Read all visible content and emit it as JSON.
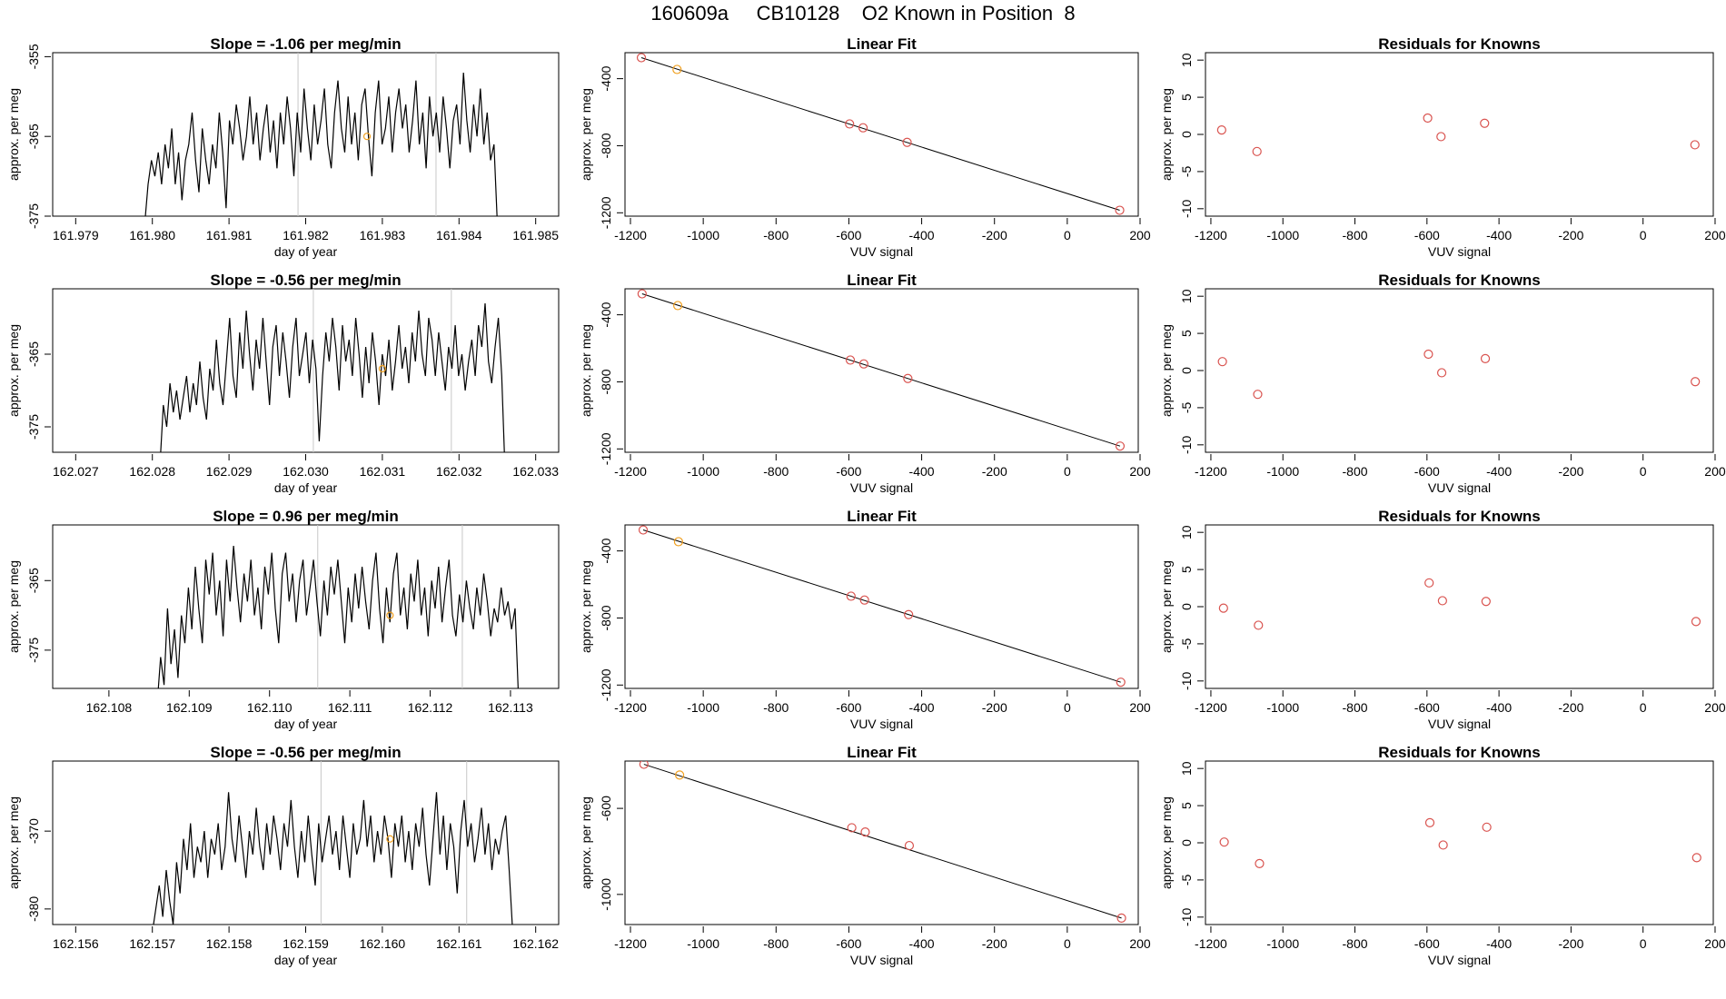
{
  "page": {
    "title": "160609a     CB10128    O2 Known in Position  8"
  },
  "colors": {
    "line": "#000000",
    "point": "#d9534f",
    "highlight": "#f0a020",
    "vline": "#c8c8c8"
  },
  "chart_data": [
    {
      "type": "line",
      "title": "Slope =  -1.06  per meg/min",
      "xlabel": "day of year",
      "ylabel": "approx. per meg",
      "xlim": [
        161.9787,
        161.9853
      ],
      "ylim": [
        -375,
        -354.5
      ],
      "xticks": [
        "161.979",
        "161.980",
        "161.981",
        "161.982",
        "161.983",
        "161.984",
        "161.985"
      ],
      "yticks": [
        "-355",
        "-365",
        "-375"
      ],
      "vlines": [
        161.9819,
        161.9837
      ],
      "highlight": [
        161.9828,
        -365
      ],
      "series": [
        {
          "x0": 161.9799,
          "x1": 161.9845,
          "seed": 11,
          "values": [
            -376,
            -371,
            -368,
            -370,
            -367,
            -371,
            -366,
            -369,
            -364,
            -371,
            -367,
            -373,
            -368,
            -366,
            -362,
            -368,
            -372,
            -364,
            -368,
            -371,
            -366,
            -369,
            -362,
            -367,
            -374,
            -363,
            -366,
            -361,
            -364,
            -368,
            -365,
            -360,
            -366,
            -362,
            -368,
            -364,
            -361,
            -367,
            -363,
            -369,
            -362,
            -366,
            -360,
            -364,
            -370,
            -362,
            -367,
            -359,
            -364,
            -368,
            -361,
            -366,
            -363,
            -359,
            -366,
            -369,
            -362,
            -358,
            -364,
            -367,
            -360,
            -366,
            -362,
            -368,
            -361,
            -359,
            -365,
            -370,
            -362,
            -358,
            -366,
            -364,
            -360,
            -367,
            -362,
            -359,
            -364,
            -361,
            -367,
            -363,
            -358,
            -366,
            -362,
            -369,
            -360,
            -365,
            -362,
            -367,
            -360,
            -364,
            -369,
            -363,
            -361,
            -366,
            -357,
            -363,
            -367,
            -361,
            -365,
            -359,
            -366,
            -362,
            -368,
            -366,
            -376
          ]
        }
      ]
    },
    {
      "type": "scatter",
      "title": "Linear Fit",
      "xlabel": "VUV signal",
      "ylabel": "approx. per meg",
      "xlim": [
        -1215,
        195
      ],
      "ylim": [
        -1220,
        -245
      ],
      "xticks": [
        "-1200",
        "-1000",
        "-800",
        "-600",
        "-400",
        "-200",
        "0",
        "200"
      ],
      "yticks": [
        "-400",
        "-800",
        "-1200"
      ],
      "points": [
        [
          -1170,
          -275
        ],
        [
          -1072,
          -345
        ],
        [
          -598,
          -670
        ],
        [
          -561,
          -693
        ],
        [
          -440,
          -780
        ],
        [
          144,
          -1185
        ]
      ],
      "highlight_index": 1,
      "fit": [
        [
          -1170,
          -275
        ],
        [
          144,
          -1185
        ]
      ]
    },
    {
      "type": "scatter",
      "title": "Residuals for Knowns",
      "xlabel": "VUV signal",
      "ylabel": "approx. per meg",
      "xlim": [
        -1215,
        195
      ],
      "ylim": [
        -11,
        11
      ],
      "xticks": [
        "-1200",
        "-1000",
        "-800",
        "-600",
        "-400",
        "-200",
        "0",
        "200"
      ],
      "yticks": [
        "10",
        "5",
        "0",
        "-5",
        "-10"
      ],
      "points": [
        [
          -1170,
          0.6
        ],
        [
          -1072,
          -2.3
        ],
        [
          -598,
          2.2
        ],
        [
          -561,
          -0.3
        ],
        [
          -440,
          1.5
        ],
        [
          144,
          -1.4
        ]
      ]
    },
    {
      "type": "line",
      "title": "Slope =  -0.56  per meg/min",
      "xlabel": "day of year",
      "ylabel": "approx. per meg",
      "xlim": [
        162.0267,
        162.0333
      ],
      "ylim": [
        -378.5,
        -356
      ],
      "xticks": [
        "162.027",
        "162.028",
        "162.029",
        "162.030",
        "162.031",
        "162.032",
        "162.033"
      ],
      "yticks": [
        "-365",
        "-375"
      ],
      "vlines": [
        162.0301,
        162.0319
      ],
      "highlight": [
        162.031,
        -367
      ],
      "series": [
        {
          "x0": 162.0281,
          "x1": 162.0326,
          "seed": 23,
          "values": [
            -380,
            -372,
            -375,
            -369,
            -373,
            -370,
            -374,
            -371,
            -368,
            -373,
            -369,
            -372,
            -366,
            -371,
            -374,
            -367,
            -370,
            -363,
            -369,
            -372,
            -366,
            -360,
            -368,
            -371,
            -362,
            -367,
            -359,
            -365,
            -370,
            -363,
            -367,
            -360,
            -366,
            -372,
            -364,
            -361,
            -368,
            -362,
            -366,
            -371,
            -364,
            -360,
            -368,
            -365,
            -362,
            -369,
            -363,
            -367,
            -377,
            -368,
            -362,
            -366,
            -360,
            -364,
            -370,
            -361,
            -366,
            -363,
            -368,
            -360,
            -365,
            -371,
            -364,
            -369,
            -362,
            -366,
            -372,
            -365,
            -368,
            -363,
            -370,
            -366,
            -361,
            -367,
            -364,
            -369,
            -362,
            -366,
            -359,
            -365,
            -368,
            -360,
            -363,
            -368,
            -362,
            -366,
            -370,
            -364,
            -367,
            -361,
            -368,
            -365,
            -370,
            -366,
            -363,
            -368,
            -361,
            -364,
            -358,
            -366,
            -369,
            -364,
            -360,
            -368,
            -381
          ]
        }
      ]
    },
    {
      "type": "scatter",
      "title": "Linear Fit",
      "xlabel": "VUV signal",
      "ylabel": "approx. per meg",
      "xlim": [
        -1215,
        195
      ],
      "ylim": [
        -1220,
        -245
      ],
      "xticks": [
        "-1200",
        "-1000",
        "-800",
        "-600",
        "-400",
        "-200",
        "0",
        "200"
      ],
      "yticks": [
        "-400",
        "-800",
        "-1200"
      ],
      "points": [
        [
          -1168,
          -275
        ],
        [
          -1070,
          -345
        ],
        [
          -596,
          -670
        ],
        [
          -559,
          -693
        ],
        [
          -438,
          -780
        ],
        [
          145,
          -1183
        ]
      ],
      "highlight_index": 1,
      "fit": [
        [
          -1168,
          -275
        ],
        [
          145,
          -1183
        ]
      ]
    },
    {
      "type": "scatter",
      "title": "Residuals for Knowns",
      "xlabel": "VUV signal",
      "ylabel": "approx. per meg",
      "xlim": [
        -1215,
        195
      ],
      "ylim": [
        -11,
        11
      ],
      "xticks": [
        "-1200",
        "-1000",
        "-800",
        "-600",
        "-400",
        "-200",
        "0",
        "200"
      ],
      "yticks": [
        "10",
        "5",
        "0",
        "-5",
        "-10"
      ],
      "points": [
        [
          -1168,
          1.2
        ],
        [
          -1070,
          -3.2
        ],
        [
          -596,
          2.2
        ],
        [
          -559,
          -0.3
        ],
        [
          -438,
          1.6
        ],
        [
          145,
          -1.5
        ]
      ]
    },
    {
      "type": "line",
      "title": "Slope =  0.96  per meg/min",
      "xlabel": "day of year",
      "ylabel": "approx. per meg",
      "xlim": [
        162.1073,
        162.1136
      ],
      "ylim": [
        -380.5,
        -357
      ],
      "xticks": [
        "162.108",
        "162.109",
        "162.110",
        "162.111",
        "162.112",
        "162.113"
      ],
      "yticks": [
        "-365",
        "-375"
      ],
      "vlines": [
        162.1106,
        162.1124
      ],
      "highlight": [
        162.1115,
        -370
      ],
      "series": [
        {
          "x0": 162.1086,
          "x1": 162.1131,
          "seed": 37,
          "values": [
            -383,
            -376,
            -380,
            -369,
            -377,
            -372,
            -379,
            -370,
            -374,
            -366,
            -372,
            -363,
            -369,
            -374,
            -362,
            -367,
            -361,
            -370,
            -365,
            -373,
            -362,
            -368,
            -360,
            -366,
            -371,
            -364,
            -368,
            -362,
            -370,
            -366,
            -372,
            -363,
            -367,
            -361,
            -369,
            -374,
            -364,
            -361,
            -368,
            -364,
            -371,
            -365,
            -362,
            -370,
            -366,
            -362,
            -368,
            -373,
            -365,
            -370,
            -363,
            -367,
            -362,
            -368,
            -374,
            -366,
            -371,
            -364,
            -369,
            -363,
            -368,
            -372,
            -365,
            -361,
            -369,
            -374,
            -366,
            -371,
            -364,
            -361,
            -370,
            -366,
            -372,
            -364,
            -368,
            -362,
            -370,
            -366,
            -373,
            -365,
            -369,
            -363,
            -371,
            -366,
            -362,
            -370,
            -373,
            -367,
            -371,
            -365,
            -369,
            -372,
            -366,
            -370,
            -364,
            -368,
            -373,
            -369,
            -371,
            -366,
            -370,
            -368,
            -372,
            -369,
            -382
          ]
        }
      ]
    },
    {
      "type": "scatter",
      "title": "Linear Fit",
      "xlabel": "VUV signal",
      "ylabel": "approx. per meg",
      "xlim": [
        -1215,
        195
      ],
      "ylim": [
        -1220,
        -245
      ],
      "xticks": [
        "-1200",
        "-1000",
        "-800",
        "-600",
        "-400",
        "-200",
        "0",
        "200"
      ],
      "yticks": [
        "-400",
        "-800",
        "-1200"
      ],
      "points": [
        [
          -1165,
          -275
        ],
        [
          -1068,
          -345
        ],
        [
          -594,
          -670
        ],
        [
          -557,
          -693
        ],
        [
          -436,
          -780
        ],
        [
          147,
          -1183
        ]
      ],
      "highlight_index": 1,
      "fit": [
        [
          -1165,
          -275
        ],
        [
          147,
          -1183
        ]
      ]
    },
    {
      "type": "scatter",
      "title": "Residuals for Knowns",
      "xlabel": "VUV signal",
      "ylabel": "approx. per meg",
      "xlim": [
        -1215,
        195
      ],
      "ylim": [
        -11,
        11
      ],
      "xticks": [
        "-1200",
        "-1000",
        "-800",
        "-600",
        "-400",
        "-200",
        "0",
        "200"
      ],
      "yticks": [
        "10",
        "5",
        "0",
        "-5",
        "-10"
      ],
      "points": [
        [
          -1165,
          -0.2
        ],
        [
          -1068,
          -2.5
        ],
        [
          -594,
          3.2
        ],
        [
          -557,
          0.8
        ],
        [
          -436,
          0.7
        ],
        [
          147,
          -2.0
        ]
      ]
    },
    {
      "type": "line",
      "title": "Slope =  -0.56  per meg/min",
      "xlabel": "day of year",
      "ylabel": "approx. per meg",
      "xlim": [
        162.1557,
        162.1623
      ],
      "ylim": [
        -382,
        -361
      ],
      "xticks": [
        "162.156",
        "162.157",
        "162.158",
        "162.159",
        "162.160",
        "162.161",
        "162.162"
      ],
      "yticks": [
        "-370",
        "-380"
      ],
      "vlines": [
        162.1592,
        162.1611
      ],
      "highlight": [
        162.1601,
        -371
      ],
      "series": [
        {
          "x0": 162.157,
          "x1": 162.1617,
          "seed": 53,
          "values": [
            -383,
            -380,
            -377,
            -381,
            -375,
            -379,
            -382,
            -374,
            -378,
            -371,
            -375,
            -369,
            -376,
            -372,
            -374,
            -370,
            -376,
            -371,
            -373,
            -369,
            -375,
            -372,
            -365,
            -371,
            -374,
            -368,
            -372,
            -376,
            -370,
            -373,
            -367,
            -372,
            -375,
            -369,
            -373,
            -368,
            -371,
            -375,
            -369,
            -372,
            -366,
            -372,
            -376,
            -370,
            -374,
            -368,
            -373,
            -377,
            -369,
            -374,
            -371,
            -368,
            -373,
            -370,
            -375,
            -368,
            -372,
            -376,
            -369,
            -373,
            -371,
            -366,
            -372,
            -368,
            -374,
            -370,
            -373,
            -368,
            -371,
            -376,
            -369,
            -372,
            -368,
            -374,
            -370,
            -375,
            -369,
            -372,
            -367,
            -373,
            -377,
            -371,
            -365,
            -373,
            -368,
            -375,
            -369,
            -372,
            -378,
            -370,
            -366,
            -372,
            -369,
            -374,
            -371,
            -367,
            -373,
            -369,
            -375,
            -371,
            -373,
            -370,
            -368,
            -375,
            -383
          ]
        }
      ]
    },
    {
      "type": "scatter",
      "title": "Linear Fit",
      "xlabel": "VUV signal",
      "ylabel": "approx. per meg",
      "xlim": [
        -1215,
        195
      ],
      "ylim": [
        -1140,
        -380
      ],
      "xticks": [
        "-1200",
        "-1000",
        "-800",
        "-600",
        "-400",
        "-200",
        "0",
        "200"
      ],
      "yticks": [
        "-600",
        "-1000"
      ],
      "points": [
        [
          -1163,
          -395
        ],
        [
          -1065,
          -445
        ],
        [
          -592,
          -690
        ],
        [
          -555,
          -710
        ],
        [
          -434,
          -773
        ],
        [
          149,
          -1110
        ]
      ],
      "highlight_index": 1,
      "fit": [
        [
          -1163,
          -395
        ],
        [
          149,
          -1110
        ]
      ]
    },
    {
      "type": "scatter",
      "title": "Residuals for Knowns",
      "xlabel": "VUV signal",
      "ylabel": "approx. per meg",
      "xlim": [
        -1215,
        195
      ],
      "ylim": [
        -11,
        11
      ],
      "xticks": [
        "-1200",
        "-1000",
        "-800",
        "-600",
        "-400",
        "-200",
        "0",
        "200"
      ],
      "yticks": [
        "10",
        "5",
        "0",
        "-5",
        "-10"
      ],
      "points": [
        [
          -1163,
          0.1
        ],
        [
          -1065,
          -2.8
        ],
        [
          -592,
          2.7
        ],
        [
          -555,
          -0.3
        ],
        [
          -434,
          2.1
        ],
        [
          149,
          -2.0
        ]
      ]
    }
  ]
}
